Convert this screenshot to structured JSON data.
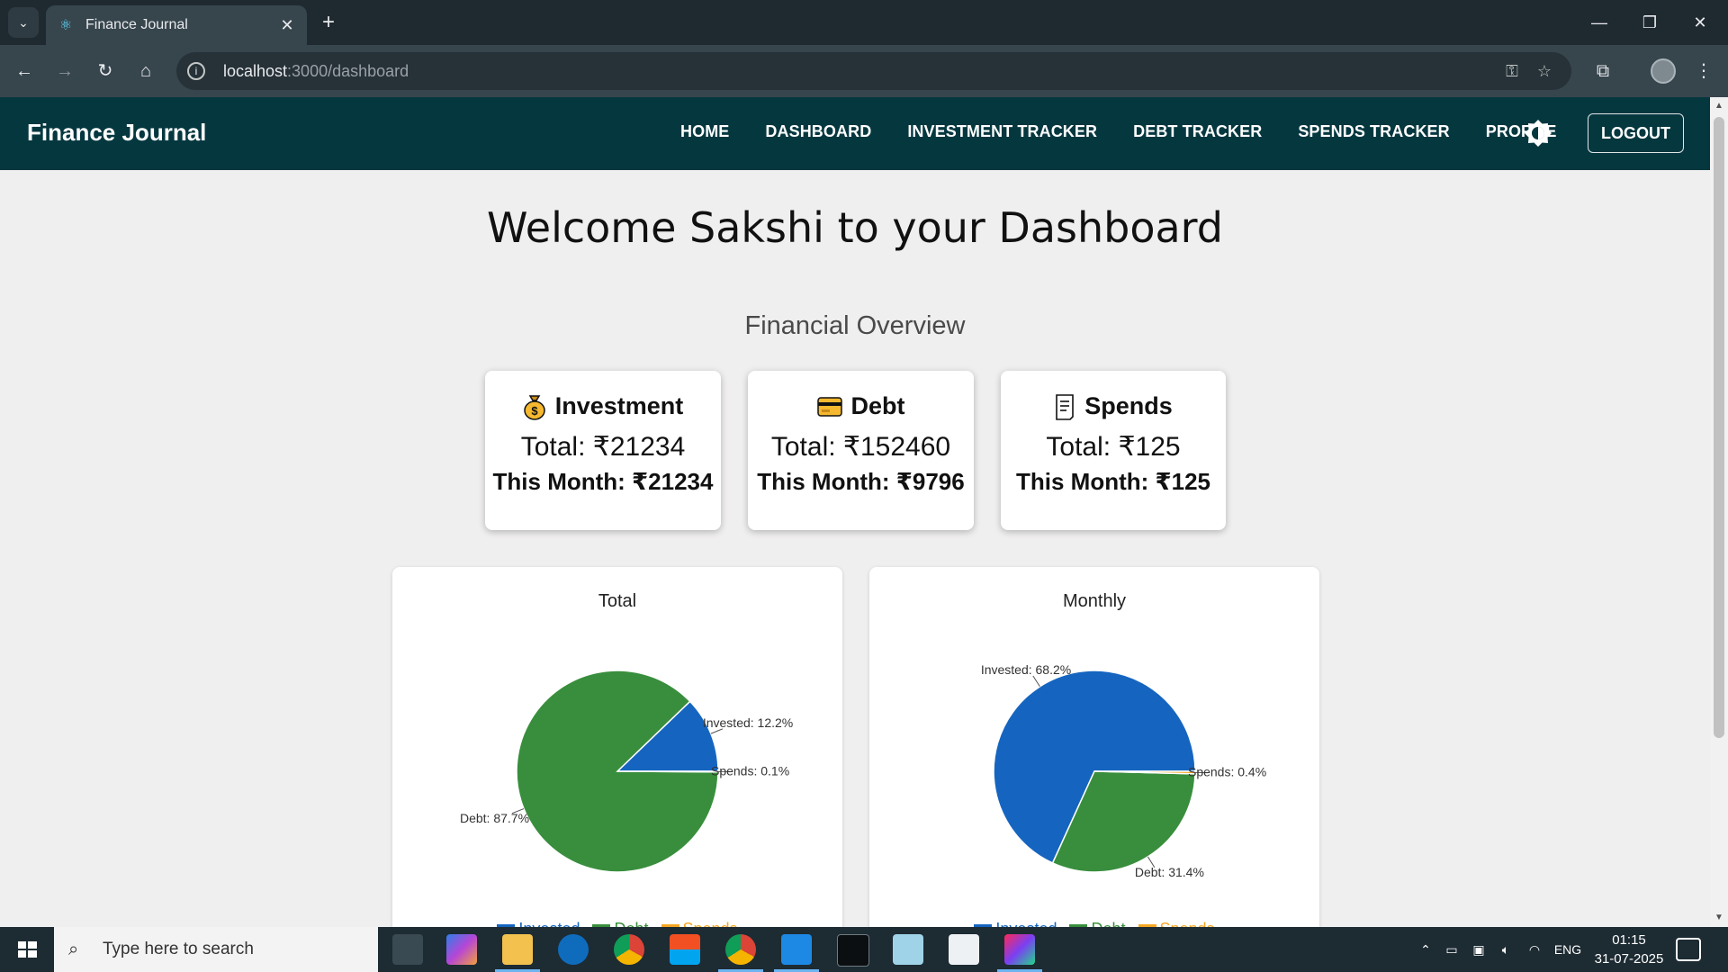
{
  "browser": {
    "tab_title": "Finance Journal",
    "url_host": "localhost",
    "url_path": ":3000/dashboard"
  },
  "navbar": {
    "brand": "Finance Journal",
    "links": [
      "HOME",
      "DASHBOARD",
      "INVESTMENT TRACKER",
      "DEBT TRACKER",
      "SPENDS TRACKER",
      "PROFILE"
    ],
    "logout_label": "LOGOUT"
  },
  "page": {
    "title": "Welcome Sakshi to your Dashboard",
    "section_title": "Financial Overview"
  },
  "cards": [
    {
      "icon": "money-bag-icon",
      "label": "Investment",
      "total": "Total: ₹21234",
      "month": "This Month: ₹21234"
    },
    {
      "icon": "credit-card-icon",
      "label": "Debt",
      "total": "Total: ₹152460",
      "month": "This Month: ₹9796"
    },
    {
      "icon": "receipt-icon",
      "label": "Spends",
      "total": "Total: ₹125",
      "month": "This Month: ₹125"
    }
  ],
  "colors": {
    "invested": "#1565c0",
    "debt": "#388e3c",
    "spends": "#f5a623",
    "navbar": "#05373f"
  },
  "chart_data": [
    {
      "type": "pie",
      "title": "Total",
      "labels": [
        "Invested",
        "Debt",
        "Spends"
      ],
      "values": [
        12.2,
        87.7,
        0.1
      ],
      "slice_labels": [
        "Invested: 12.2%",
        "Debt: 87.7%",
        "Spends: 0.1%"
      ],
      "legend": "bottom"
    },
    {
      "type": "pie",
      "title": "Monthly",
      "labels": [
        "Invested",
        "Debt",
        "Spends"
      ],
      "values": [
        68.2,
        31.4,
        0.4
      ],
      "slice_labels": [
        "Invested: 68.2%",
        "Debt: 31.4%",
        "Spends: 0.4%"
      ],
      "legend": "bottom"
    }
  ],
  "taskbar": {
    "search_placeholder": "Type here to search",
    "language": "ENG",
    "time": "01:15",
    "date": "31-07-2025"
  }
}
